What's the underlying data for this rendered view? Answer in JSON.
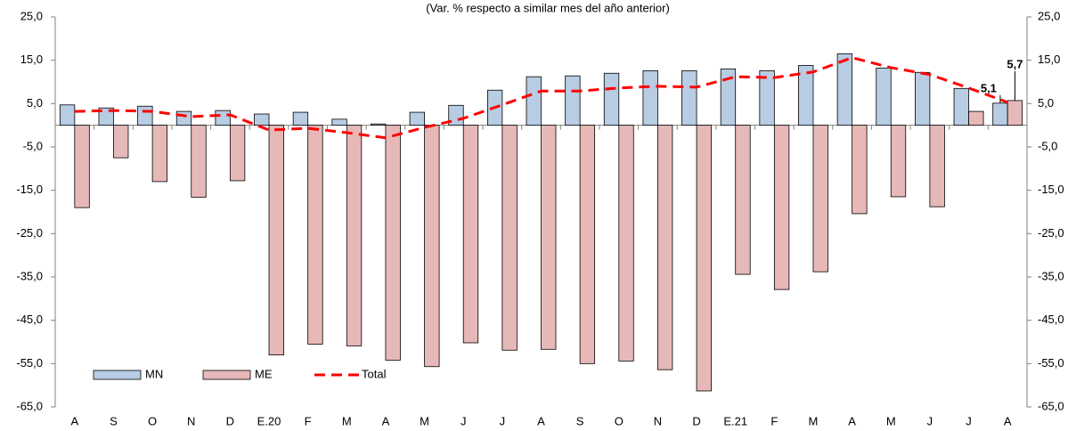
{
  "chart_data": {
    "type": "bar",
    "subtitle": "(Var. % respecto a similar mes del año anterior)",
    "categories": [
      "A",
      "S",
      "O",
      "N",
      "D",
      "E.20",
      "F",
      "M",
      "A",
      "M",
      "J",
      "J",
      "A",
      "S",
      "O",
      "N",
      "D",
      "E.21",
      "F",
      "M",
      "A",
      "M",
      "J",
      "J",
      "A"
    ],
    "series": [
      {
        "name": "MN",
        "type": "bar",
        "color": "#b8cce4",
        "values": [
          4.7,
          4.0,
          4.4,
          3.2,
          3.4,
          2.6,
          3.0,
          1.4,
          0.3,
          3.0,
          4.6,
          8.1,
          11.2,
          11.4,
          12.0,
          12.6,
          12.6,
          13.0,
          12.6,
          13.8,
          16.5,
          13.2,
          12.2,
          8.5,
          5.1
        ],
        "value_labels": [
          null,
          null,
          null,
          null,
          null,
          null,
          null,
          null,
          null,
          null,
          null,
          null,
          null,
          null,
          null,
          null,
          null,
          null,
          null,
          null,
          null,
          null,
          null,
          null,
          "5,1"
        ]
      },
      {
        "name": "ME",
        "type": "bar",
        "color": "#e6b9b8",
        "values": [
          -19.0,
          -7.5,
          -13.0,
          -16.6,
          -12.8,
          -53.0,
          -50.5,
          -50.9,
          -54.2,
          -55.7,
          -50.2,
          -51.9,
          -51.7,
          -55.0,
          -54.4,
          -56.4,
          -61.3,
          -34.4,
          -37.9,
          -33.8,
          -20.4,
          -16.5,
          -18.8,
          3.2,
          5.7
        ],
        "value_labels": [
          null,
          null,
          null,
          null,
          null,
          null,
          null,
          null,
          null,
          null,
          null,
          null,
          null,
          null,
          null,
          null,
          null,
          null,
          null,
          null,
          null,
          null,
          null,
          null,
          "5,7"
        ]
      },
      {
        "name": "Total",
        "type": "line",
        "color": "#ff0000",
        "values": [
          3.2,
          3.4,
          3.2,
          2.0,
          2.4,
          -1.1,
          -0.7,
          -1.7,
          -2.9,
          -0.5,
          1.6,
          4.7,
          7.9,
          7.9,
          8.6,
          9.0,
          8.8,
          11.2,
          11.0,
          12.3,
          15.6,
          13.3,
          11.7,
          8.6,
          5.3
        ]
      }
    ],
    "ylim": [
      -65,
      25
    ],
    "yticks": [
      {
        "value": -65,
        "label": "-65,0"
      },
      {
        "value": -55,
        "label": "-55,0"
      },
      {
        "value": -45,
        "label": "-45,0"
      },
      {
        "value": -35,
        "label": "-35,0"
      },
      {
        "value": -25,
        "label": "-25,0"
      },
      {
        "value": -15,
        "label": "-15,0"
      },
      {
        "value": -5,
        "label": "-5,0"
      },
      {
        "value": 5,
        "label": "5,0"
      },
      {
        "value": 15,
        "label": "15,0"
      },
      {
        "value": 25,
        "label": "25,0"
      }
    ],
    "grid": false
  }
}
